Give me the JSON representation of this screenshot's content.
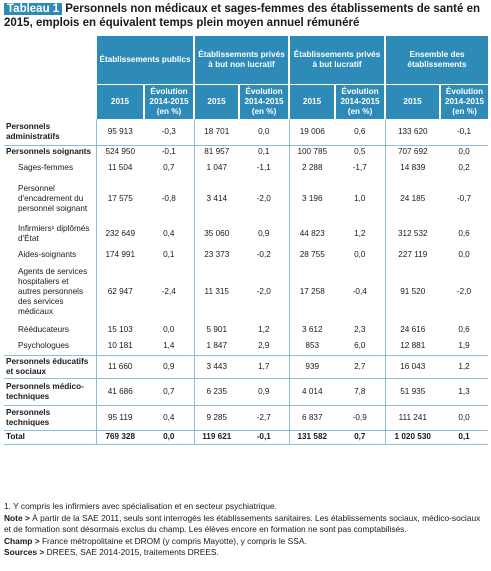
{
  "header": {
    "tag": "Tableau 1",
    "title": "Personnels non médicaux et sages-femmes des établissements de santé en 2015, emplois en équivalent temps plein moyen annuel rémunéré"
  },
  "groups": [
    "Établissements publics",
    "Établissements privés à but non lucratif",
    "Établissements privés à but lucratif",
    "Ensemble des établissements"
  ],
  "subheaders": {
    "year": "2015",
    "evolution": "Évolution 2014-2015 (en %)"
  },
  "rows": [
    {
      "label": "Personnels administratifs",
      "values": [
        "95 913",
        "-0,3",
        "18 701",
        "0,0",
        "19 006",
        "0,6",
        "133 620",
        "-0,1"
      ]
    },
    {
      "label": "Personnels soignants",
      "values": [
        "524 950",
        "-0,1",
        "81 957",
        "0,1",
        "100 785",
        "0,5",
        "707 692",
        "0,0"
      ]
    },
    {
      "label": "Sages-femmes",
      "values": [
        "11 504",
        "0,7",
        "1 047",
        "-1,1",
        "2 288",
        "-1,7",
        "14 839",
        "0,2"
      ]
    },
    {
      "label": "Personnel d'encadrement du personnel soignant",
      "values": [
        "17 575",
        "-0,8",
        "3 414",
        "-2,0",
        "3 196",
        "1,0",
        "24 185",
        "-0,7"
      ]
    },
    {
      "label": "Infirmiers¹ diplômés d'État",
      "values": [
        "232 649",
        "0,4",
        "35 060",
        "0,9",
        "44 823",
        "1,2",
        "312 532",
        "0,6"
      ]
    },
    {
      "label": "Aides-soignants",
      "values": [
        "174 991",
        "0,1",
        "23 373",
        "-0,2",
        "28 755",
        "0,0",
        "227 119",
        "0,0"
      ]
    },
    {
      "label": "Agents de services hospitaliers et autres personnels des services médicaux",
      "values": [
        "62 947",
        "-2,4",
        "11 315",
        "-2,0",
        "17 258",
        "-0,4",
        "91 520",
        "-2,0"
      ]
    },
    {
      "label": "Rééducateurs",
      "values": [
        "15 103",
        "0,0",
        "5 901",
        "1,2",
        "3 612",
        "2,3",
        "24 616",
        "0,6"
      ]
    },
    {
      "label": "Psychologues",
      "values": [
        "10 181",
        "1,4",
        "1 847",
        "2,9",
        "853",
        "6,0",
        "12 881",
        "1,9"
      ]
    },
    {
      "label": "Personnels éducatifs et sociaux",
      "values": [
        "11 660",
        "0,9",
        "3 443",
        "1,7",
        "939",
        "2,7",
        "16 043",
        "1,2"
      ]
    },
    {
      "label": "Personnels médico-techniques",
      "values": [
        "41 686",
        "0,7",
        "6 235",
        "0,9",
        "4 014",
        "7,8",
        "51 935",
        "1,3"
      ]
    },
    {
      "label": "Personnels techniques",
      "values": [
        "95 119",
        "0,4",
        "9 285",
        "-2,7",
        "6 837",
        "-0,9",
        "111 241",
        "0,0"
      ]
    },
    {
      "label": "Total",
      "values": [
        "769 328",
        "0,0",
        "119 621",
        "-0,1",
        "131 582",
        "0,7",
        "1 020 530",
        "0,1"
      ]
    }
  ],
  "notes": {
    "footnote": "1. Y compris les infirmiers avec spécialisation et en secteur psychiatrique.",
    "note_label": "Note >",
    "note_text": "À partir de la SAE 2011, seuls sont interrogés les établissements sanitaires. Les établissements sociaux, médico-sociaux et de formation sont désormais exclus du champ. Les élèves encore en formation ne sont pas comptabilisés.",
    "champ_label": "Champ >",
    "champ_text": "France métropolitaine et DROM (y compris Mayotte), y compris le SSA.",
    "sources_label": "Sources >",
    "sources_text": "DREES, SAE 2014-2015, traitements DREES."
  }
}
